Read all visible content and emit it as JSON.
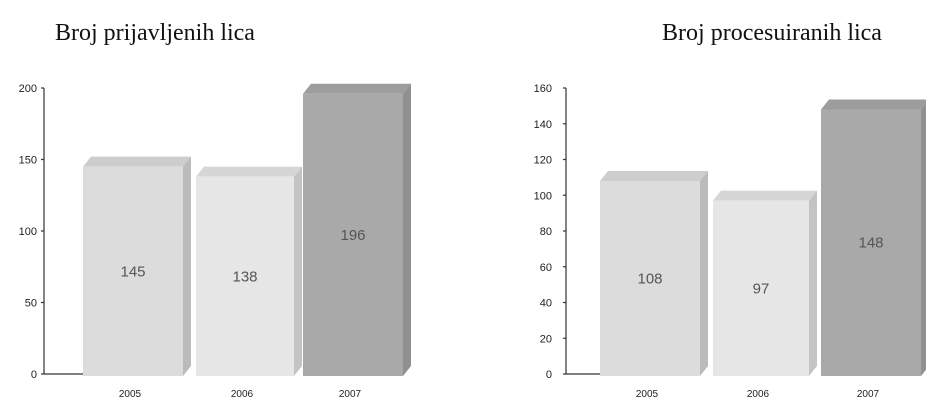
{
  "chart_data": [
    {
      "type": "bar",
      "title": "Broj prijavljenih lica",
      "categories": [
        "2005",
        "2006",
        "2007"
      ],
      "values": [
        145,
        138,
        196
      ],
      "data_labels": [
        "145",
        "138",
        "196"
      ],
      "ylim": [
        0,
        200
      ],
      "yticks": [
        0,
        50,
        100,
        150,
        200
      ],
      "xlabel": "",
      "ylabel": "",
      "grid": false,
      "legend": "none",
      "colors": [
        "#dcdcdc",
        "#e6e6e6",
        "#a9a9a9"
      ]
    },
    {
      "type": "bar",
      "title": "Broj procesuiranih lica",
      "categories": [
        "2005",
        "2006",
        "2007"
      ],
      "values": [
        108,
        97,
        148
      ],
      "data_labels": [
        "108",
        "97",
        "148"
      ],
      "ylim": [
        0,
        160
      ],
      "yticks": [
        0,
        20,
        40,
        60,
        80,
        100,
        120,
        140,
        160
      ],
      "xlabel": "",
      "ylabel": "",
      "grid": false,
      "legend": "none",
      "colors": [
        "#dcdcdc",
        "#e6e6e6",
        "#a9a9a9"
      ]
    }
  ]
}
